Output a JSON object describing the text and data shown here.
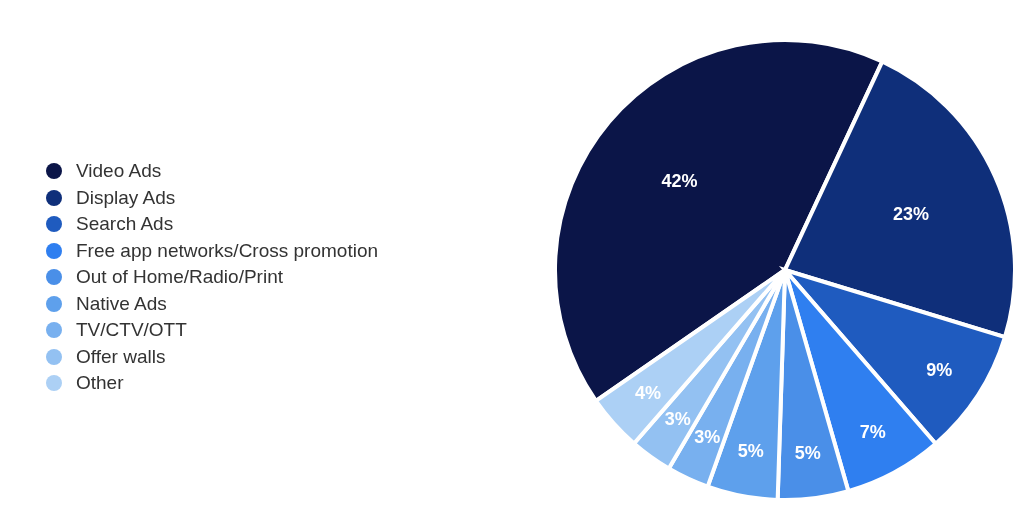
{
  "chart_data": {
    "type": "pie",
    "categories": [
      "Video Ads",
      "Display Ads",
      "Search Ads",
      "Free app networks/Cross promotion",
      "Out of Home/Radio/Print",
      "Native Ads",
      "TV/CTV/OTT",
      "Offer walls",
      "Other"
    ],
    "values": [
      42,
      23,
      9,
      7,
      5,
      5,
      3,
      3,
      4
    ],
    "colors": [
      "#0b1548",
      "#0f2f7a",
      "#1f5bbf",
      "#2f7ff0",
      "#4a8fe8",
      "#5ea0ec",
      "#78b0ef",
      "#93c1f2",
      "#acd0f5"
    ],
    "value_labels": [
      "42%",
      "23%",
      "9%",
      "7%",
      "5%",
      "5%",
      "3%",
      "3%",
      "4%"
    ],
    "legend": "left"
  }
}
